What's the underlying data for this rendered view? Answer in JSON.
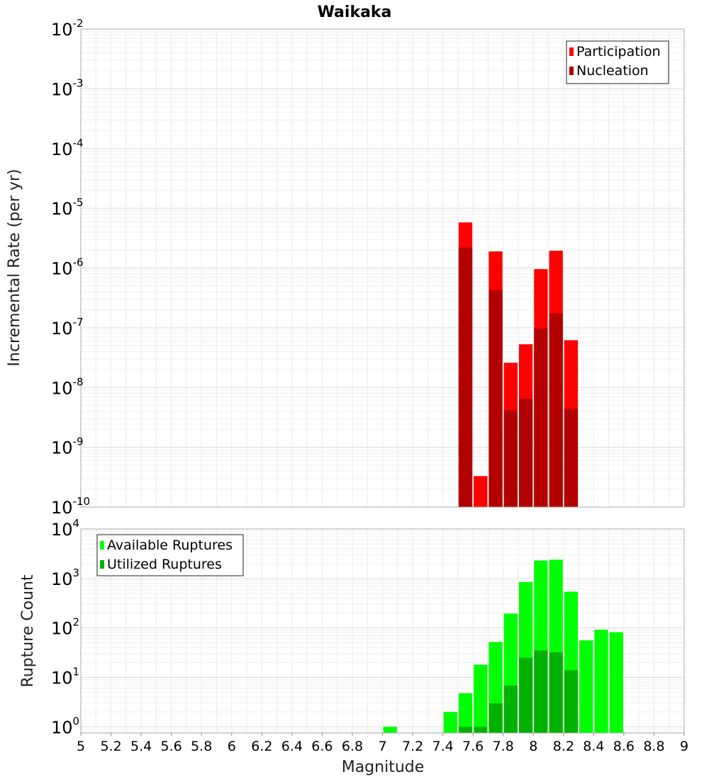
{
  "chart_data": [
    {
      "type": "bar",
      "title": "Waikaka",
      "xlabel": "",
      "ylabel": "Incremental Rate (per yr)",
      "xlim": [
        5,
        9
      ],
      "ylim": [
        1e-10,
        0.01
      ],
      "yscale": "log",
      "grid": true,
      "legend": "top-right",
      "bar_width": 0.1,
      "x": [
        7.55,
        7.65,
        7.75,
        7.85,
        7.95,
        8.05,
        8.15,
        8.25
      ],
      "series": [
        {
          "name": "Participation",
          "color": "#ff0000",
          "values": [
            5.8e-06,
            3.3e-10,
            1.9e-06,
            2.6e-08,
            5.3e-08,
            9.6e-07,
            1.95e-06,
            6.2e-08
          ]
        },
        {
          "name": "Nucleation",
          "color": "#b20000",
          "values": [
            2.2e-06,
            null,
            4.3e-07,
            4.2e-09,
            6.5e-09,
            9.8e-08,
            1.75e-07,
            4.4e-09
          ]
        }
      ],
      "y_tick_labels": [
        {
          "base": "10",
          "exp": "-2"
        },
        {
          "base": "10",
          "exp": "-3"
        },
        {
          "base": "10",
          "exp": "-4"
        },
        {
          "base": "10",
          "exp": "-5"
        },
        {
          "base": "10",
          "exp": "-6"
        },
        {
          "base": "10",
          "exp": "-7"
        },
        {
          "base": "10",
          "exp": "-8"
        },
        {
          "base": "10",
          "exp": "-9"
        },
        {
          "base": "10",
          "exp": "-10"
        }
      ]
    },
    {
      "type": "bar",
      "title": "",
      "xlabel": "Magnitude",
      "ylabel": "Rupture Count",
      "xlim": [
        5,
        9
      ],
      "ylim": [
        0.75,
        10000
      ],
      "yscale": "log",
      "grid": true,
      "legend": "top-left",
      "bar_width": 0.1,
      "x": [
        7.05,
        7.45,
        7.55,
        7.65,
        7.75,
        7.85,
        7.95,
        8.05,
        8.15,
        8.25,
        8.35,
        8.45,
        8.55
      ],
      "series": [
        {
          "name": "Available Ruptures",
          "color": "#00ff00",
          "values": [
            1,
            2,
            4.8,
            18,
            52,
            195,
            850,
            2300,
            2400,
            540,
            56,
            92,
            82
          ]
        },
        {
          "name": "Utilized Ruptures",
          "color": "#00b200",
          "values": [
            null,
            null,
            1,
            1,
            3,
            6.8,
            25,
            35,
            32,
            14,
            null,
            null,
            null
          ]
        }
      ],
      "y_tick_labels": [
        {
          "base": "10",
          "exp": "4"
        },
        {
          "base": "10",
          "exp": "3"
        },
        {
          "base": "10",
          "exp": "2"
        },
        {
          "base": "10",
          "exp": "1"
        },
        {
          "base": "10",
          "exp": "0"
        }
      ],
      "x_tick_labels": [
        "5",
        "5.2",
        "5.4",
        "5.6",
        "5.8",
        "6",
        "6.2",
        "6.4",
        "6.6",
        "6.8",
        "7",
        "7.2",
        "7.4",
        "7.6",
        "7.8",
        "8",
        "8.2",
        "8.4",
        "8.6",
        "8.8",
        "9"
      ]
    }
  ]
}
